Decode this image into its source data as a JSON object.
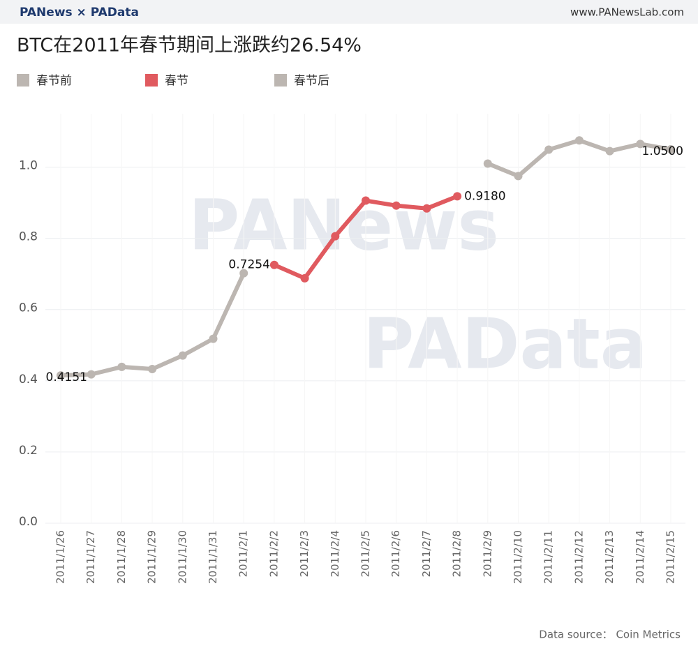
{
  "header": {
    "brand": "PANews × PAData",
    "site": "www.PANewsLab.com"
  },
  "chart_data": {
    "type": "line",
    "title": "BTC在2011年春节期间上涨跌约26.54%",
    "categories": [
      "2011/1/26",
      "2011/1/27",
      "2011/1/28",
      "2011/1/29",
      "2011/1/30",
      "2011/1/31",
      "2011/2/1",
      "2011/2/2",
      "2011/2/3",
      "2011/2/4",
      "2011/2/5",
      "2011/2/6",
      "2011/2/7",
      "2011/2/8",
      "2011/2/9",
      "2011/2/10",
      "2011/2/11",
      "2011/2/12",
      "2011/2/13",
      "2011/2/14",
      "2011/2/15"
    ],
    "series": [
      {
        "name": "春节前",
        "color": "#bcb6b1",
        "values": [
          0.4151,
          0.418,
          0.439,
          0.433,
          0.471,
          0.518,
          0.702,
          null,
          null,
          null,
          null,
          null,
          null,
          null,
          null,
          null,
          null,
          null,
          null,
          null,
          null
        ],
        "value_labels": [
          "0.4151",
          null,
          null,
          null,
          null,
          null,
          null,
          null,
          null,
          null,
          null,
          null,
          null,
          null,
          null,
          null,
          null,
          null,
          null,
          null,
          null
        ]
      },
      {
        "name": "春节",
        "color": "#e05a5f",
        "values": [
          null,
          null,
          null,
          null,
          null,
          null,
          null,
          0.7254,
          0.688,
          0.806,
          0.906,
          0.892,
          0.884,
          0.918,
          null,
          null,
          null,
          null,
          null,
          null,
          null
        ],
        "value_labels": [
          null,
          null,
          null,
          null,
          null,
          null,
          null,
          "0.7254",
          null,
          null,
          null,
          null,
          null,
          "0.9180",
          null,
          null,
          null,
          null,
          null,
          null,
          null
        ]
      },
      {
        "name": "春节后",
        "color": "#bcb6b1",
        "values": [
          null,
          null,
          null,
          null,
          null,
          null,
          null,
          null,
          null,
          null,
          null,
          null,
          null,
          null,
          1.01,
          0.975,
          1.049,
          1.075,
          1.045,
          1.065,
          1.05
        ],
        "value_labels": [
          null,
          null,
          null,
          null,
          null,
          null,
          null,
          null,
          null,
          null,
          null,
          null,
          null,
          null,
          null,
          null,
          null,
          null,
          null,
          null,
          "1.0500"
        ]
      }
    ],
    "ylim": [
      0,
      1.15
    ],
    "yticks": [
      {
        "value": 0,
        "label": "0.0"
      },
      0.2,
      0.4,
      0.6,
      0.8,
      {
        "value": 1,
        "label": "1.0"
      }
    ],
    "grid": true,
    "watermarks": [
      "PANews",
      "PAData"
    ],
    "source": "Data source： Coin Metrics"
  }
}
